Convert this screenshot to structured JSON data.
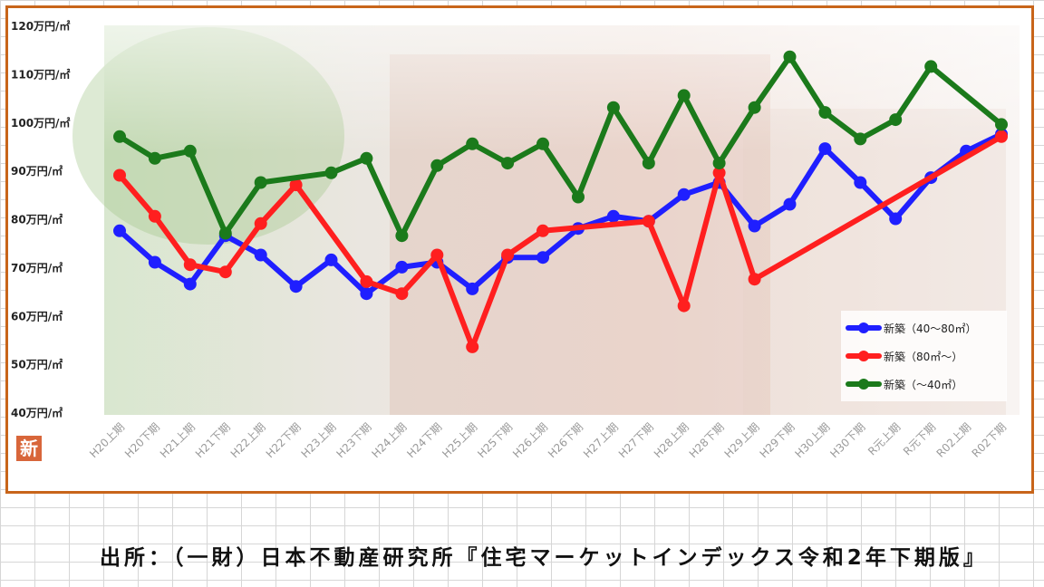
{
  "chart_data": {
    "type": "line",
    "title": "",
    "xlabel": "",
    "ylabel": "",
    "ylim": [
      40,
      120
    ],
    "y_ticks": [
      "40万円/㎡",
      "50万円/㎡",
      "60万円/㎡",
      "70万円/㎡",
      "80万円/㎡",
      "90万円/㎡",
      "100万円/㎡",
      "110万円/㎡",
      "120万円/㎡"
    ],
    "x": [
      "H20上期",
      "H20下期",
      "H21上期",
      "H21下期",
      "H22上期",
      "H22下期",
      "H23上期",
      "H23下期",
      "H24上期",
      "H24下期",
      "H25上期",
      "H25下期",
      "H26上期",
      "H26下期",
      "H27上期",
      "H27下期",
      "H28上期",
      "H28下期",
      "H29上期",
      "H29下期",
      "H30上期",
      "H30下期",
      "R元上期",
      "R元下期",
      "R02上期",
      "R02下期"
    ],
    "series": [
      {
        "name": "新築（40～80㎡）",
        "color": "#1f1fff",
        "values": [
          77.5,
          71,
          66.5,
          76.5,
          72.5,
          66,
          71.5,
          64.5,
          70,
          71,
          65.5,
          72,
          72,
          78,
          80.5,
          79.5,
          85,
          87.5,
          78.5,
          83,
          94.5,
          87.5,
          80,
          88.5,
          94,
          97.5
        ]
      },
      {
        "name": "新築（80㎡～）",
        "color": "#ff1f1f",
        "values": [
          89,
          80.5,
          70.5,
          69,
          79,
          87,
          null,
          67,
          64.5,
          72.5,
          53.5,
          72.5,
          77.5,
          null,
          null,
          79.5,
          62,
          89.5,
          67.5,
          null,
          null,
          null,
          null,
          null,
          null,
          97
        ]
      },
      {
        "name": "新築（～40㎡）",
        "color": "#1b7a1b",
        "values": [
          97,
          92.5,
          94,
          77,
          87.5,
          null,
          89.5,
          92.5,
          76.5,
          91,
          95.5,
          91.5,
          95.5,
          84.5,
          103,
          91.5,
          105.5,
          91.5,
          103,
          113.5,
          102,
          96.5,
          100.5,
          111.5,
          null,
          99.5
        ]
      }
    ],
    "legend_position": "bottom-right",
    "grid": false
  },
  "logo_text": "新",
  "source_text": "出所：（一財）日本不動産研究所『住宅マーケットインデックス令和2年下期版』"
}
